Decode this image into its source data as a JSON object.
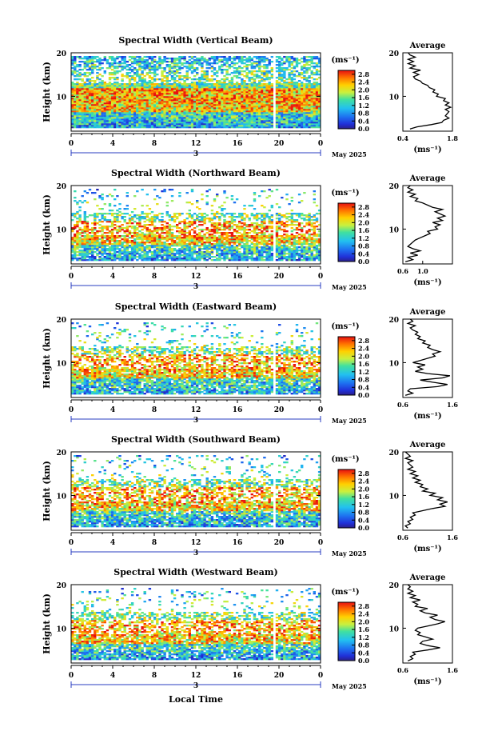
{
  "figure": {
    "xlabel": "Local Time",
    "ylabel": "Height (km)",
    "date_label": "May 2025",
    "day_label": "3",
    "colorbar_unit": "(ms⁻¹)",
    "colorbar_ticks": [
      "2.8",
      "2.4",
      "2.0",
      "1.6",
      "1.2",
      "0.8",
      "0.4",
      "0.0"
    ],
    "avg_title": "Average",
    "avg_xlabel": "(ms⁻¹)"
  },
  "chart_data": [
    {
      "type": "heatmap",
      "title": "Spectral Width (Vertical Beam)",
      "xlabel": "",
      "ylabel": "Height (km)",
      "x_ticks": [
        "0",
        "4",
        "8",
        "12",
        "16",
        "20",
        "0"
      ],
      "y_ticks": [
        "20",
        "10"
      ],
      "xlim": [
        0,
        24
      ],
      "ylim": [
        2,
        20
      ],
      "colorbar": {
        "label": "(ms⁻¹)",
        "range": [
          0.0,
          3.0
        ],
        "ticks": [
          2.8,
          2.4,
          2.0,
          1.6,
          1.2,
          0.8,
          0.4,
          0.0
        ]
      },
      "profile": {
        "type": "line",
        "title": "Average",
        "xlabel": "(ms⁻¹)",
        "x_ticks": [
          "0.4",
          "1.8"
        ],
        "xlim": [
          0.4,
          1.8
        ],
        "y_ticks": [
          "20",
          "10"
        ],
        "ylim": [
          2,
          20
        ],
        "points": [
          [
            0.6,
            2.5
          ],
          [
            0.8,
            3
          ],
          [
            1.2,
            3.5
          ],
          [
            1.5,
            4
          ],
          [
            1.55,
            4.5
          ],
          [
            1.7,
            5
          ],
          [
            1.6,
            5.5
          ],
          [
            1.65,
            6
          ],
          [
            1.7,
            6.5
          ],
          [
            1.6,
            7
          ],
          [
            1.75,
            7.5
          ],
          [
            1.6,
            8
          ],
          [
            1.7,
            8.5
          ],
          [
            1.55,
            9
          ],
          [
            1.6,
            9.5
          ],
          [
            1.35,
            10
          ],
          [
            1.4,
            10.5
          ],
          [
            1.25,
            11
          ],
          [
            1.3,
            11.5
          ],
          [
            1.15,
            12
          ],
          [
            1.1,
            12.5
          ],
          [
            0.95,
            13
          ],
          [
            0.9,
            13.5
          ],
          [
            0.75,
            14
          ],
          [
            0.7,
            14.5
          ],
          [
            0.85,
            15
          ],
          [
            0.7,
            15.5
          ],
          [
            0.9,
            16
          ],
          [
            0.6,
            16.5
          ],
          [
            0.75,
            17
          ],
          [
            0.55,
            17.5
          ],
          [
            0.7,
            18
          ],
          [
            0.55,
            18.5
          ],
          [
            0.75,
            19
          ],
          [
            0.6,
            19.5
          ],
          [
            0.55,
            20
          ]
        ]
      }
    },
    {
      "type": "heatmap",
      "title": "Spectral Width (Northward Beam)",
      "xlabel": "",
      "ylabel": "Height (km)",
      "x_ticks": [
        "0",
        "4",
        "8",
        "12",
        "16",
        "20",
        "0"
      ],
      "y_ticks": [
        "20",
        "10"
      ],
      "xlim": [
        0,
        24
      ],
      "ylim": [
        2,
        20
      ],
      "colorbar": {
        "label": "(ms⁻¹)",
        "range": [
          0.0,
          3.0
        ],
        "ticks": [
          2.8,
          2.4,
          2.0,
          1.6,
          1.2,
          0.8,
          0.4,
          0.0
        ]
      },
      "profile": {
        "type": "line",
        "title": "Average",
        "xlabel": "(ms⁻¹)",
        "x_ticks": [
          "0.6",
          "1.0"
        ],
        "xlim": [
          0.6,
          1.6
        ],
        "y_ticks": [
          "20",
          "10"
        ],
        "ylim": [
          2,
          20
        ],
        "points": [
          [
            0.65,
            2.5
          ],
          [
            0.8,
            3
          ],
          [
            0.7,
            3.5
          ],
          [
            0.9,
            4
          ],
          [
            0.75,
            4.5
          ],
          [
            0.95,
            5
          ],
          [
            0.8,
            5.5
          ],
          [
            0.7,
            6
          ],
          [
            0.75,
            6.5
          ],
          [
            0.8,
            7
          ],
          [
            0.85,
            7.5
          ],
          [
            0.95,
            8
          ],
          [
            1.05,
            8.5
          ],
          [
            1.15,
            9
          ],
          [
            1.1,
            9.5
          ],
          [
            1.3,
            10
          ],
          [
            1.25,
            10.5
          ],
          [
            1.35,
            11
          ],
          [
            1.2,
            11.5
          ],
          [
            1.4,
            12
          ],
          [
            1.3,
            12.5
          ],
          [
            1.45,
            13
          ],
          [
            1.35,
            13.5
          ],
          [
            1.25,
            14
          ],
          [
            1.4,
            14.5
          ],
          [
            1.2,
            15
          ],
          [
            1.1,
            15.5
          ],
          [
            1.0,
            16
          ],
          [
            0.85,
            16.5
          ],
          [
            0.9,
            17
          ],
          [
            0.75,
            17.5
          ],
          [
            0.85,
            18
          ],
          [
            0.7,
            18.5
          ],
          [
            0.8,
            19
          ],
          [
            0.7,
            19.5
          ],
          [
            0.75,
            20
          ]
        ]
      }
    },
    {
      "type": "heatmap",
      "title": "Spectral Width (Eastward Beam)",
      "xlabel": "",
      "ylabel": "Height (km)",
      "x_ticks": [
        "0",
        "4",
        "8",
        "12",
        "16",
        "20",
        "0"
      ],
      "y_ticks": [
        "20",
        "10"
      ],
      "xlim": [
        0,
        24
      ],
      "ylim": [
        2,
        20
      ],
      "colorbar": {
        "label": "(ms⁻¹)",
        "range": [
          0.0,
          3.0
        ],
        "ticks": [
          2.8,
          2.4,
          2.0,
          1.6,
          1.2,
          0.8,
          0.4,
          0.0
        ]
      },
      "profile": {
        "type": "line",
        "title": "Average",
        "xlabel": "(ms⁻¹)",
        "x_ticks": [
          "0.6",
          "1.6"
        ],
        "xlim": [
          0.6,
          1.6
        ],
        "y_ticks": [
          "20",
          "10"
        ],
        "ylim": [
          2,
          20
        ],
        "points": [
          [
            0.65,
            2.5
          ],
          [
            0.8,
            3
          ],
          [
            0.7,
            3.5
          ],
          [
            0.75,
            4
          ],
          [
            1.3,
            4.5
          ],
          [
            1.5,
            5
          ],
          [
            1.2,
            5.5
          ],
          [
            0.95,
            6
          ],
          [
            1.4,
            6.5
          ],
          [
            1.55,
            7
          ],
          [
            1.1,
            7.5
          ],
          [
            0.85,
            8
          ],
          [
            1.0,
            8.5
          ],
          [
            0.9,
            9
          ],
          [
            1.05,
            9.5
          ],
          [
            0.8,
            10
          ],
          [
            0.95,
            10.5
          ],
          [
            1.1,
            11
          ],
          [
            1.25,
            11.5
          ],
          [
            1.2,
            12
          ],
          [
            1.35,
            12.5
          ],
          [
            1.2,
            13
          ],
          [
            1.1,
            13.5
          ],
          [
            1.15,
            14
          ],
          [
            1.0,
            14.5
          ],
          [
            1.05,
            15
          ],
          [
            0.9,
            15.5
          ],
          [
            0.95,
            16
          ],
          [
            0.85,
            16.5
          ],
          [
            0.9,
            17
          ],
          [
            0.8,
            17.5
          ],
          [
            0.75,
            18
          ],
          [
            0.85,
            18.5
          ],
          [
            0.7,
            19
          ],
          [
            0.8,
            19.5
          ],
          [
            0.75,
            20
          ]
        ]
      }
    },
    {
      "type": "heatmap",
      "title": "Spectral Width (Southward Beam)",
      "xlabel": "",
      "ylabel": "Height (km)",
      "x_ticks": [
        "0",
        "4",
        "8",
        "12",
        "16",
        "20",
        "0"
      ],
      "y_ticks": [
        "20",
        "10"
      ],
      "xlim": [
        0,
        24
      ],
      "ylim": [
        2,
        20
      ],
      "colorbar": {
        "label": "(ms⁻¹)",
        "range": [
          0.0,
          3.0
        ],
        "ticks": [
          2.8,
          2.4,
          2.0,
          1.6,
          1.2,
          0.8,
          0.4,
          0.0
        ]
      },
      "profile": {
        "type": "line",
        "title": "Average",
        "xlabel": "(ms⁻¹)",
        "x_ticks": [
          "0.6",
          "1.6"
        ],
        "xlim": [
          0.6,
          1.6
        ],
        "y_ticks": [
          "20",
          "10"
        ],
        "ylim": [
          2,
          20
        ],
        "points": [
          [
            0.7,
            2.5
          ],
          [
            0.65,
            3
          ],
          [
            0.75,
            3.5
          ],
          [
            0.7,
            4
          ],
          [
            0.8,
            4.5
          ],
          [
            0.75,
            5
          ],
          [
            0.85,
            5.5
          ],
          [
            0.8,
            6
          ],
          [
            1.0,
            6.5
          ],
          [
            1.2,
            7
          ],
          [
            1.45,
            7.5
          ],
          [
            1.35,
            8
          ],
          [
            1.5,
            8.5
          ],
          [
            1.3,
            9
          ],
          [
            1.4,
            9.5
          ],
          [
            1.15,
            10
          ],
          [
            1.25,
            10.5
          ],
          [
            1.0,
            11
          ],
          [
            1.1,
            11.5
          ],
          [
            0.95,
            12
          ],
          [
            1.0,
            12.5
          ],
          [
            0.85,
            13
          ],
          [
            0.95,
            13.5
          ],
          [
            0.8,
            14
          ],
          [
            0.9,
            14.5
          ],
          [
            0.75,
            15
          ],
          [
            0.85,
            15.5
          ],
          [
            0.7,
            16
          ],
          [
            0.8,
            16.5
          ],
          [
            0.75,
            17
          ],
          [
            0.7,
            17.5
          ],
          [
            0.8,
            18
          ],
          [
            0.65,
            18.5
          ],
          [
            0.75,
            19
          ],
          [
            0.7,
            19.5
          ],
          [
            0.65,
            20
          ]
        ]
      }
    },
    {
      "type": "heatmap",
      "title": "Spectral Width (Westward Beam)",
      "xlabel": "Local Time",
      "ylabel": "Height (km)",
      "x_ticks": [
        "0",
        "4",
        "8",
        "12",
        "16",
        "20",
        "0"
      ],
      "y_ticks": [
        "20",
        "10"
      ],
      "xlim": [
        0,
        24
      ],
      "ylim": [
        2,
        20
      ],
      "colorbar": {
        "label": "(ms⁻¹)",
        "range": [
          0.0,
          3.0
        ],
        "ticks": [
          2.8,
          2.4,
          2.0,
          1.6,
          1.2,
          0.8,
          0.4,
          0.0
        ]
      },
      "profile": {
        "type": "line",
        "title": "Average",
        "xlabel": "(ms⁻¹)",
        "x_ticks": [
          "0.6",
          "1.6"
        ],
        "xlim": [
          0.6,
          1.6
        ],
        "y_ticks": [
          "20",
          "10"
        ],
        "ylim": [
          2,
          20
        ],
        "points": [
          [
            0.7,
            2.5
          ],
          [
            0.8,
            3
          ],
          [
            0.75,
            3.5
          ],
          [
            0.85,
            4
          ],
          [
            0.8,
            4.5
          ],
          [
            1.1,
            5
          ],
          [
            1.35,
            5.5
          ],
          [
            1.1,
            6
          ],
          [
            0.95,
            6.5
          ],
          [
            1.0,
            7
          ],
          [
            1.2,
            7.5
          ],
          [
            1.05,
            8
          ],
          [
            0.9,
            8.5
          ],
          [
            0.95,
            9
          ],
          [
            0.85,
            9.5
          ],
          [
            0.9,
            10
          ],
          [
            1.1,
            10.5
          ],
          [
            1.3,
            11
          ],
          [
            1.45,
            11.5
          ],
          [
            1.25,
            12
          ],
          [
            1.15,
            12.5
          ],
          [
            1.3,
            13
          ],
          [
            1.05,
            13.5
          ],
          [
            0.95,
            14
          ],
          [
            1.1,
            14.5
          ],
          [
            0.85,
            15
          ],
          [
            0.9,
            15.5
          ],
          [
            0.8,
            16
          ],
          [
            0.95,
            16.5
          ],
          [
            0.75,
            17
          ],
          [
            0.85,
            17.5
          ],
          [
            0.7,
            18
          ],
          [
            0.8,
            18.5
          ],
          [
            0.7,
            19
          ],
          [
            0.75,
            19.5
          ],
          [
            0.7,
            20
          ]
        ]
      }
    }
  ]
}
